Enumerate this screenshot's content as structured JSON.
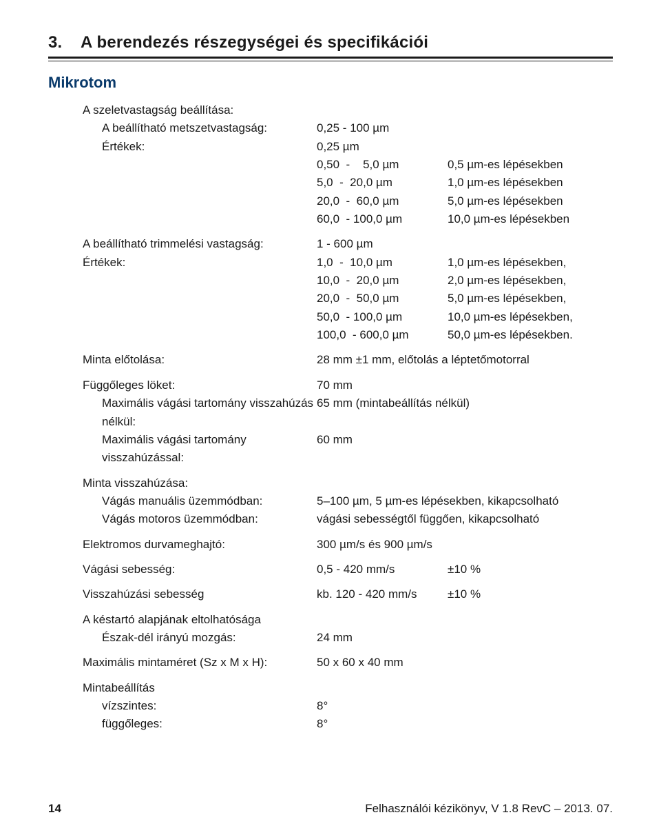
{
  "header": {
    "section_number": "3.",
    "section_title": "A berendezés részegységei és specifikációi"
  },
  "subhead": "Mikrotom",
  "slice": {
    "title": "A szeletvastagság beállítása:",
    "adjustable_label": "A beállítható metszetvastagság:",
    "adjustable_value": "0,25 - 100 µm",
    "values_label": "Értékek:",
    "values_first": "0,25 µm",
    "rows": [
      {
        "range": "0,50  -    5,0 µm",
        "step": "0,5 µm-es lépésekben"
      },
      {
        "range": "5,0  -  20,0 µm",
        "step": "1,0 µm-es lépésekben"
      },
      {
        "range": "20,0  -  60,0 µm",
        "step": "5,0 µm-es lépésekben"
      },
      {
        "range": "60,0  - 100,0 µm",
        "step": "10,0 µm-es lépésekben"
      }
    ]
  },
  "trim": {
    "label": "A beállítható trimmelési vastagság:",
    "range": "1 - 600 µm",
    "values_label": "Értékek:",
    "rows": [
      {
        "range": "1,0  -  10,0 µm",
        "step": "1,0 µm-es lépésekben,"
      },
      {
        "range": "10,0  -  20,0 µm",
        "step": "2,0 µm-es lépésekben,"
      },
      {
        "range": "20,0  -  50,0 µm",
        "step": "5,0 µm-es lépésekben,"
      },
      {
        "range": "50,0  - 100,0 µm",
        "step": "10,0 µm-es lépésekben,"
      },
      {
        "range": "100,0  - 600,0 µm",
        "step": "50,0 µm-es lépésekben."
      }
    ]
  },
  "advance": {
    "label": "Minta előtolása:",
    "value": "28 mm ±1 mm, előtolás a léptetőmotorral"
  },
  "vertical": {
    "label": "Függőleges löket:",
    "value": "70 mm",
    "max_no_retract_label": "Maximális vágási tartomány visszahúzás nélkül:",
    "max_no_retract_value": "65 mm (mintabeállítás nélkül)",
    "max_retract_label": "Maximális vágási tartomány visszahúzással:",
    "max_retract_value": "60 mm"
  },
  "retract": {
    "label": "Minta visszahúzása:",
    "manual_label": "Vágás manuális üzemmódban:",
    "manual_value": "5–100 µm, 5 µm-es lépésekben, kikapcsolható",
    "motor_label": "Vágás motoros üzemmódban:",
    "motor_value": "vágási sebességtől függően, kikapcsolható"
  },
  "coarse": {
    "label": "Elektromos durvameghajtó:",
    "value": "300 µm/s és 900 µm/s"
  },
  "cut_speed": {
    "label": "Vágási sebesség:",
    "value": "0,5 - 420 mm/s",
    "tol": "±10 %"
  },
  "return_speed": {
    "label": "Visszahúzási sebesség",
    "value": "kb. 120 - 420 mm/s",
    "tol": "±10 %"
  },
  "knife_base": {
    "label": "A késtartó alapjának eltolhatósága",
    "ns_label": "Észak-dél irányú mozgás:",
    "ns_value": "24 mm"
  },
  "specimen_size": {
    "label": "Maximális mintaméret (Sz x M x H):",
    "value": "50 x 60 x 40 mm"
  },
  "orientation": {
    "label": "Mintabeállítás",
    "h_label": "vízszintes:",
    "h_value": "8°",
    "v_label": "függőleges:",
    "v_value": "8°"
  },
  "footer": {
    "page": "14",
    "text": "Felhasználói kézikönyv, V 1.8 RevC – 2013. 07."
  }
}
